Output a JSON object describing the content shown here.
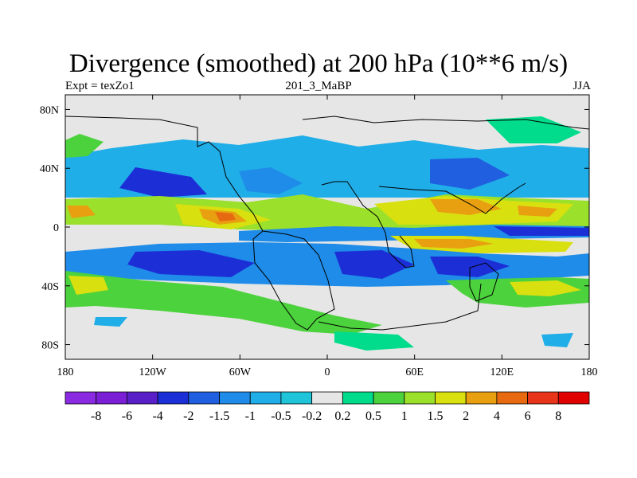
{
  "chart_data": {
    "type": "heatmap",
    "title": "Divergence (smoothed) at 200 hPa (10**6 m/s)",
    "left_label": "Expt = texZo1",
    "center_label": "201_3_MaBP",
    "right_label": "JJA",
    "x_ticks": [
      {
        "value": -180,
        "label": "180"
      },
      {
        "value": -120,
        "label": "120W"
      },
      {
        "value": -60,
        "label": "60W"
      },
      {
        "value": 0,
        "label": "0"
      },
      {
        "value": 60,
        "label": "60E"
      },
      {
        "value": 120,
        "label": "120E"
      },
      {
        "value": 180,
        "label": "180"
      }
    ],
    "y_ticks": [
      {
        "value": 80,
        "label": "80N"
      },
      {
        "value": 40,
        "label": "40N"
      },
      {
        "value": 0,
        "label": "0"
      },
      {
        "value": -40,
        "label": "40S"
      },
      {
        "value": -80,
        "label": "80S"
      }
    ],
    "xlim": [
      -180,
      180
    ],
    "ylim": [
      -90,
      90
    ],
    "colorbar": {
      "labels": [
        "-8",
        "-6",
        "-4",
        "-2",
        "-1.5",
        "-1",
        "-0.5",
        "-0.2",
        "0.2",
        "0.5",
        "1",
        "1.5",
        "2",
        "4",
        "6",
        "8"
      ],
      "colors": [
        "#8a2be2",
        "#7a1fd6",
        "#5a20c8",
        "#1c2fd6",
        "#1f5fe0",
        "#1e8ce8",
        "#20aee8",
        "#20c4d8",
        "#e6e6e6",
        "#00dc8c",
        "#4cd23c",
        "#9be02a",
        "#d8e010",
        "#e8a010",
        "#e86a10",
        "#e83418",
        "#e00000"
      ]
    }
  }
}
